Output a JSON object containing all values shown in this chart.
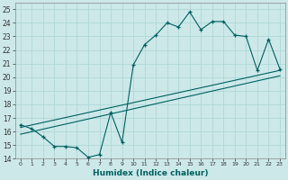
{
  "xlabel": "Humidex (Indice chaleur)",
  "ylabel": "",
  "bg_color": "#cce8e8",
  "line_color": "#006060",
  "grid_color": "#b0d8d8",
  "xlim": [
    -0.5,
    23.5
  ],
  "ylim": [
    14,
    25.5
  ],
  "xticks": [
    0,
    1,
    2,
    3,
    4,
    5,
    6,
    7,
    8,
    9,
    10,
    11,
    12,
    13,
    14,
    15,
    16,
    17,
    18,
    19,
    20,
    21,
    22,
    23
  ],
  "yticks": [
    14,
    15,
    16,
    17,
    18,
    19,
    20,
    21,
    22,
    23,
    24,
    25
  ],
  "main_x": [
    0,
    1,
    2,
    3,
    4,
    5,
    6,
    7,
    8,
    9,
    10,
    11,
    12,
    13,
    14,
    15,
    16,
    17,
    18,
    19,
    20,
    21,
    22,
    23
  ],
  "main_y": [
    16.5,
    16.2,
    15.6,
    14.9,
    14.9,
    14.8,
    14.1,
    14.3,
    17.4,
    15.2,
    20.9,
    22.4,
    23.1,
    24.0,
    23.7,
    24.8,
    23.5,
    24.1,
    24.1,
    23.1,
    23.0,
    20.5,
    22.8,
    20.6
  ],
  "trend1_x": [
    0,
    23
  ],
  "trend1_y": [
    16.3,
    20.5
  ],
  "trend2_x": [
    0,
    23
  ],
  "trend2_y": [
    15.8,
    20.1
  ]
}
